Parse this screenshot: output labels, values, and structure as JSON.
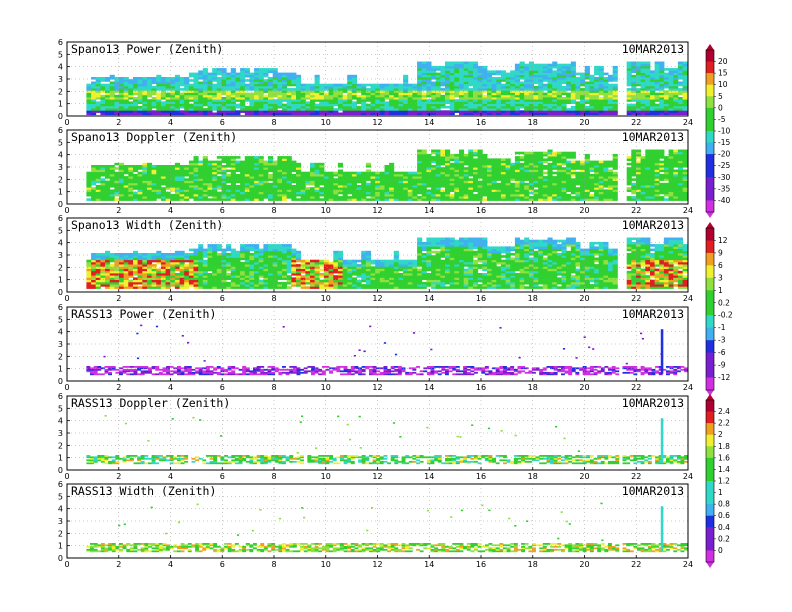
{
  "figure": {
    "date_label": "10MAR2013"
  },
  "colors": {
    "magenta": "#d030e0",
    "purple": "#7a1fd0",
    "blue": "#2030e0",
    "lightblue": "#40b0f0",
    "cyan": "#30d8c8",
    "green": "#30d030",
    "lightgreen": "#90e040",
    "yellow": "#f0f030",
    "orange": "#f0a020",
    "red": "#e02020",
    "darkred": "#b00030"
  },
  "colorbars": [
    {
      "name": "power",
      "labels": [
        "20",
        "15",
        "10",
        "5",
        "0",
        "-5",
        "-10",
        "-15",
        "-20",
        "-25",
        "-30",
        "-35",
        "-40"
      ]
    },
    {
      "name": "width",
      "labels": [
        "12",
        "9",
        "6",
        "3",
        "1",
        "0.2",
        "-0.2",
        "-1",
        "-3",
        "-6",
        "-9",
        "-12"
      ]
    },
    {
      "name": "rass",
      "labels": [
        "2.4",
        "2.2",
        "2",
        "1.8",
        "1.6",
        "1.4",
        "1.2",
        "1",
        "0.8",
        "0.6",
        "0.4",
        "0.2",
        "0"
      ]
    }
  ],
  "chart_data": [
    {
      "type": "heatmap",
      "title": "Spano13 Power (Zenith)",
      "date": "10MAR2013",
      "xlim": [
        0,
        24
      ],
      "ylim": [
        0,
        6
      ],
      "x_ticks": [
        "0",
        "2",
        "4",
        "6",
        "8",
        "10",
        "12",
        "14",
        "16",
        "18",
        "20",
        "22",
        "24"
      ],
      "y_ticks": [
        "0",
        "1",
        "2",
        "3",
        "4",
        "5",
        "6"
      ],
      "colorbar": "power",
      "grid": true
    },
    {
      "type": "heatmap",
      "title": "Spano13 Doppler (Zenith)",
      "date": "10MAR2013",
      "xlim": [
        0,
        24
      ],
      "ylim": [
        0,
        6
      ],
      "x_ticks": [
        "0",
        "2",
        "4",
        "6",
        "8",
        "10",
        "12",
        "14",
        "16",
        "18",
        "20",
        "22",
        "24"
      ],
      "y_ticks": [
        "0",
        "1",
        "2",
        "3",
        "4",
        "5",
        "6"
      ],
      "colorbar": "power",
      "grid": true
    },
    {
      "type": "heatmap",
      "title": "Spano13 Width (Zenith)",
      "date": "10MAR2013",
      "xlim": [
        0,
        24
      ],
      "ylim": [
        0,
        6
      ],
      "x_ticks": [
        "0",
        "2",
        "4",
        "6",
        "8",
        "10",
        "12",
        "14",
        "16",
        "18",
        "20",
        "22",
        "24"
      ],
      "y_ticks": [
        "0",
        "1",
        "2",
        "3",
        "4",
        "5",
        "6"
      ],
      "colorbar": "width",
      "grid": true
    },
    {
      "type": "heatmap",
      "title": "RASS13 Power (Zenith)",
      "date": "10MAR2013",
      "xlim": [
        0,
        24
      ],
      "ylim": [
        0,
        6
      ],
      "x_ticks": [
        "0",
        "2",
        "4",
        "6",
        "8",
        "10",
        "12",
        "14",
        "16",
        "18",
        "20",
        "22",
        "24"
      ],
      "y_ticks": [
        "0",
        "1",
        "2",
        "3",
        "4",
        "5",
        "6"
      ],
      "colorbar": "width",
      "grid": true
    },
    {
      "type": "heatmap",
      "title": "RASS13 Doppler (Zenith)",
      "date": "10MAR2013",
      "xlim": [
        0,
        24
      ],
      "ylim": [
        0,
        6
      ],
      "x_ticks": [
        "0",
        "2",
        "4",
        "6",
        "8",
        "10",
        "12",
        "14",
        "16",
        "18",
        "20",
        "22",
        "24"
      ],
      "y_ticks": [
        "0",
        "1",
        "2",
        "3",
        "4",
        "5",
        "6"
      ],
      "colorbar": "rass",
      "grid": true
    },
    {
      "type": "heatmap",
      "title": "RASS13 Width (Zenith)",
      "date": "10MAR2013",
      "xlim": [
        0,
        24
      ],
      "ylim": [
        0,
        6
      ],
      "x_ticks": [
        "0",
        "2",
        "4",
        "6",
        "8",
        "10",
        "12",
        "14",
        "16",
        "18",
        "20",
        "22",
        "24"
      ],
      "y_ticks": [
        "0",
        "1",
        "2",
        "3",
        "4",
        "5",
        "6"
      ],
      "colorbar": "rass",
      "grid": true
    }
  ]
}
